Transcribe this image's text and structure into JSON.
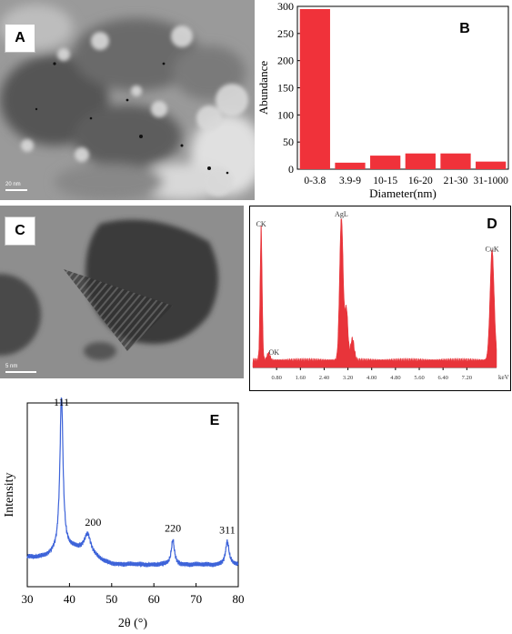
{
  "panels": {
    "A": {
      "label": "A",
      "scalebar": "20 nm"
    },
    "B": {
      "label": "B"
    },
    "C": {
      "label": "C",
      "scalebar": "5 nm"
    },
    "D": {
      "label": "D"
    },
    "E": {
      "label": "E"
    }
  },
  "colors": {
    "bar": "#f0323a",
    "eds": "#e8343a",
    "xrd": "#3d63d9"
  },
  "chart_data": [
    {
      "id": "B",
      "type": "bar",
      "categories": [
        "0-3.8",
        "3.9-9",
        "10-15",
        "16-20",
        "21-30",
        "31-1000"
      ],
      "values": [
        295,
        12,
        25,
        29,
        29,
        14
      ],
      "xlabel": "Diameter(nm)",
      "ylabel": "Abundance",
      "ylim": [
        0,
        300
      ],
      "yticks": [
        0,
        50,
        100,
        150,
        200,
        250,
        300
      ],
      "grid": false
    },
    {
      "id": "D",
      "type": "line",
      "xlabel": "keV",
      "xticks": [
        "0.80",
        "1.60",
        "2.40",
        "3.20",
        "4.00",
        "4.80",
        "5.60",
        "6.40",
        "7.20"
      ],
      "xlim": [
        0,
        8.2
      ],
      "peaks": [
        {
          "label": "CK",
          "x": 0.28,
          "height": 0.93
        },
        {
          "label": "OK",
          "x": 0.53,
          "height": 0.05
        },
        {
          "label": "AgL",
          "x": 2.98,
          "height": 1.0
        },
        {
          "label": "CuK",
          "x": 8.05,
          "height": 0.76
        }
      ]
    },
    {
      "id": "E",
      "type": "line",
      "xlabel": "2θ (°)",
      "ylabel": "Intensity",
      "xlim": [
        30,
        80
      ],
      "xticks": [
        30,
        40,
        50,
        60,
        70,
        80
      ],
      "grid": false,
      "peaks": [
        {
          "label": "111",
          "x": 38.1,
          "height": 1.0
        },
        {
          "label": "200",
          "x": 44.3,
          "height": 0.22
        },
        {
          "label": "220",
          "x": 64.5,
          "height": 0.18
        },
        {
          "label": "311",
          "x": 77.4,
          "height": 0.17
        }
      ]
    }
  ]
}
